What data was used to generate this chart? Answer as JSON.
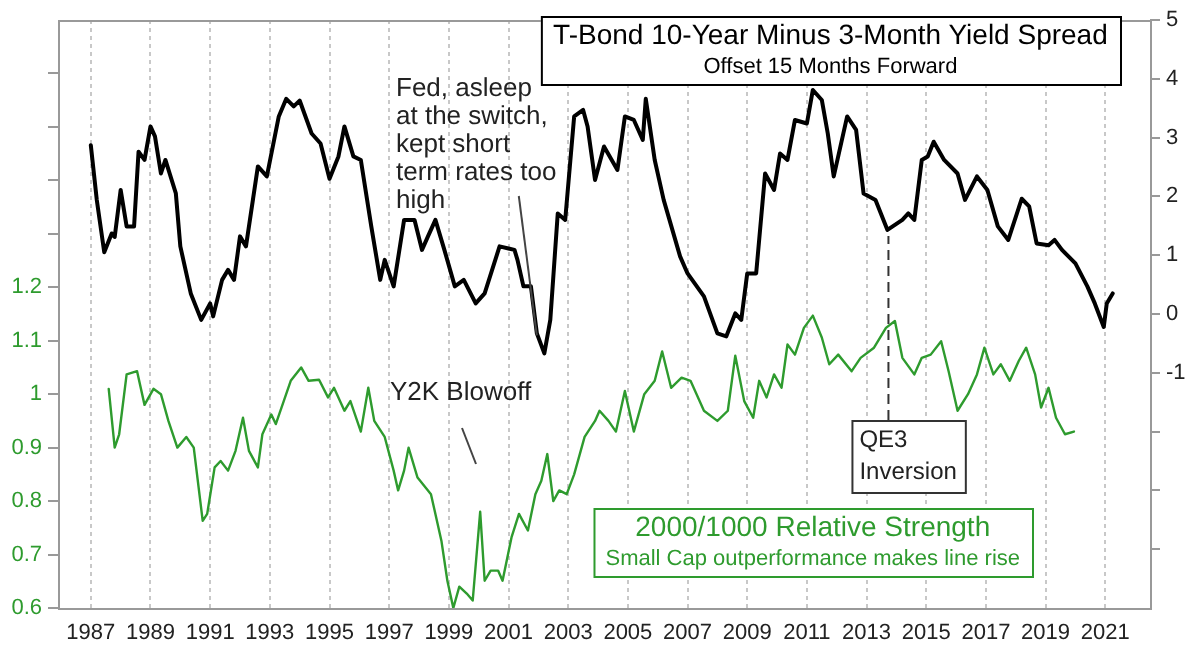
{
  "chart_data": {
    "type": "line",
    "xlim": [
      1985.9,
      2022.5
    ],
    "xticks": [
      1987,
      1989,
      1991,
      1993,
      1995,
      1997,
      1999,
      2001,
      2003,
      2005,
      2007,
      2009,
      2011,
      2013,
      2015,
      2017,
      2019,
      2021
    ],
    "ylim": [
      0.6,
      1.7
    ],
    "yticks": [
      0.6,
      0.7,
      0.8,
      0.9,
      1,
      1.1,
      1.2,
      {
        "value": 1.3,
        "label": null
      },
      {
        "value": 1.4,
        "label": null
      },
      {
        "value": 1.5,
        "label": null
      },
      {
        "value": 1.6,
        "label": null
      }
    ],
    "y2lim": [
      -5,
      5
    ],
    "y2ticks": [
      5,
      4,
      3,
      2,
      1,
      0,
      -1,
      {
        "value": -2,
        "label": null
      },
      {
        "value": -3,
        "label": null
      },
      {
        "value": -4,
        "label": null
      }
    ],
    "grid": "x",
    "marker": "none",
    "series": [
      {
        "name": "T-Bond 10-Year Minus 3-Month Yield Spread",
        "color": "#000000",
        "axis": "y2",
        "x": [
          1987.0,
          1987.2,
          1987.45,
          1987.7,
          1987.8,
          1988.0,
          1988.2,
          1988.45,
          1988.6,
          1988.8,
          1989.0,
          1989.15,
          1989.35,
          1989.5,
          1989.85,
          1990.0,
          1990.35,
          1990.7,
          1991.0,
          1991.1,
          1991.4,
          1991.6,
          1991.8,
          1992.0,
          1992.2,
          1992.6,
          1992.9,
          1993.3,
          1993.55,
          1993.8,
          1994.0,
          1994.4,
          1994.7,
          1995.0,
          1995.3,
          1995.5,
          1995.8,
          1996.05,
          1996.4,
          1996.7,
          1996.85,
          1997.15,
          1997.5,
          1997.85,
          1998.1,
          1998.3,
          1998.55,
          1998.85,
          1999.2,
          1999.5,
          1999.9,
          2000.2,
          2000.7,
          2001.2,
          2001.3,
          2001.5,
          2001.75,
          2001.95,
          2002.2,
          2002.4,
          2002.65,
          2002.9,
          2003.2,
          2003.5,
          2003.65,
          2003.9,
          2004.2,
          2004.65,
          2004.9,
          2005.2,
          2005.5,
          2005.6,
          2005.9,
          2006.2,
          2006.75,
          2007.0,
          2007.55,
          2008.0,
          2008.3,
          2008.6,
          2008.8,
          2009.0,
          2009.3,
          2009.6,
          2009.9,
          2010.1,
          2010.35,
          2010.6,
          2011.0,
          2011.2,
          2011.5,
          2011.7,
          2011.9,
          2012.35,
          2012.65,
          2012.9,
          2013.3,
          2013.7,
          2014.2,
          2014.4,
          2014.6,
          2014.85,
          2015.05,
          2015.25,
          2015.6,
          2016.05,
          2016.3,
          2016.7,
          2017.05,
          2017.4,
          2017.75,
          2018.2,
          2018.45,
          2018.7,
          2019.1,
          2019.3,
          2019.55,
          2020.0,
          2020.4,
          2020.65,
          2020.95,
          2021.05,
          2021.25
        ],
        "values": [
          2.87,
          1.94,
          1.05,
          1.37,
          1.31,
          2.11,
          1.49,
          1.49,
          2.76,
          2.62,
          3.19,
          3.02,
          2.39,
          2.62,
          2.05,
          1.15,
          0.35,
          -0.1,
          0.18,
          -0.04,
          0.58,
          0.75,
          0.58,
          1.32,
          1.15,
          2.51,
          2.34,
          3.36,
          3.66,
          3.53,
          3.63,
          3.07,
          2.9,
          2.3,
          2.68,
          3.19,
          2.68,
          2.62,
          1.49,
          0.58,
          0.92,
          0.47,
          1.6,
          1.6,
          1.09,
          1.32,
          1.6,
          1.09,
          0.47,
          0.58,
          0.18,
          0.35,
          1.15,
          1.09,
          0.92,
          0.47,
          0.47,
          -0.33,
          -0.67,
          -0.1,
          1.71,
          1.6,
          3.36,
          3.47,
          3.19,
          2.28,
          2.85,
          2.45,
          3.36,
          3.3,
          2.96,
          3.66,
          2.62,
          1.94,
          0.98,
          0.69,
          0.3,
          -0.33,
          -0.38,
          0.01,
          -0.1,
          0.69,
          0.69,
          2.39,
          2.11,
          2.73,
          2.62,
          3.3,
          3.24,
          3.81,
          3.64,
          3.07,
          2.34,
          3.36,
          3.13,
          2.05,
          1.94,
          1.43,
          1.6,
          1.71,
          1.6,
          2.62,
          2.68,
          2.93,
          2.62,
          2.39,
          1.94,
          2.34,
          2.11,
          1.49,
          1.26,
          1.96,
          1.83,
          1.2,
          1.17,
          1.26,
          1.09,
          0.86,
          0.47,
          0.18,
          -0.22,
          0.18,
          0.35
        ]
      },
      {
        "name": "2000/1000 Relative Strength",
        "color": "#2e9b2e",
        "x": [
          1987.6,
          1987.8,
          1987.95,
          1988.2,
          1988.55,
          1988.8,
          1989.1,
          1989.35,
          1989.6,
          1989.9,
          1990.2,
          1990.45,
          1990.75,
          1990.9,
          1991.15,
          1991.35,
          1991.6,
          1991.85,
          1992.1,
          1992.3,
          1992.6,
          1992.75,
          1993.05,
          1993.2,
          1993.7,
          1994.05,
          1994.3,
          1994.65,
          1994.95,
          1995.15,
          1995.5,
          1995.7,
          1996.05,
          1996.3,
          1996.5,
          1996.85,
          1997.15,
          1997.3,
          1997.5,
          1997.65,
          1997.95,
          1998.4,
          1998.75,
          1998.95,
          1999.15,
          1999.35,
          1999.6,
          1999.8,
          2000.05,
          2000.2,
          2000.4,
          2000.65,
          2000.8,
          2001.1,
          2001.35,
          2001.65,
          2001.9,
          2002.1,
          2002.3,
          2002.5,
          2002.7,
          2002.95,
          2003.2,
          2003.55,
          2003.9,
          2004.05,
          2004.35,
          2004.6,
          2004.9,
          2005.2,
          2005.55,
          2005.9,
          2006.15,
          2006.45,
          2006.8,
          2007.1,
          2007.55,
          2008.0,
          2008.35,
          2008.6,
          2008.9,
          2009.2,
          2009.4,
          2009.65,
          2009.9,
          2010.15,
          2010.35,
          2010.6,
          2010.9,
          2011.2,
          2011.5,
          2011.75,
          2012.05,
          2012.5,
          2012.8,
          2013.25,
          2013.65,
          2013.95,
          2014.2,
          2014.6,
          2014.85,
          2015.15,
          2015.5,
          2015.75,
          2016.05,
          2016.4,
          2016.7,
          2016.95,
          2017.25,
          2017.5,
          2017.8,
          2018.1,
          2018.35,
          2018.65,
          2018.85,
          2019.1,
          2019.35,
          2019.65,
          2019.95
        ],
        "values": [
          1.01,
          0.9,
          0.925,
          1.037,
          1.043,
          0.98,
          1.01,
          1.0,
          0.95,
          0.9,
          0.92,
          0.9,
          0.763,
          0.776,
          0.863,
          0.875,
          0.857,
          0.894,
          0.956,
          0.894,
          0.863,
          0.925,
          0.962,
          0.944,
          1.025,
          1.05,
          1.025,
          1.027,
          0.994,
          1.012,
          0.969,
          0.987,
          0.93,
          1.012,
          0.95,
          0.92,
          0.857,
          0.82,
          0.857,
          0.9,
          0.844,
          0.813,
          0.726,
          0.651,
          0.6,
          0.64,
          0.627,
          0.614,
          0.78,
          0.651,
          0.67,
          0.67,
          0.651,
          0.732,
          0.776,
          0.745,
          0.813,
          0.838,
          0.888,
          0.8,
          0.82,
          0.813,
          0.85,
          0.92,
          0.95,
          0.969,
          0.95,
          0.93,
          1.006,
          0.93,
          1.0,
          1.025,
          1.08,
          1.012,
          1.031,
          1.025,
          0.969,
          0.95,
          0.969,
          1.072,
          0.987,
          0.956,
          1.025,
          0.994,
          1.037,
          1.012,
          1.093,
          1.074,
          1.124,
          1.147,
          1.106,
          1.056,
          1.074,
          1.043,
          1.068,
          1.087,
          1.124,
          1.137,
          1.068,
          1.037,
          1.068,
          1.074,
          1.099,
          1.043,
          0.969,
          1.0,
          1.037,
          1.087,
          1.037,
          1.056,
          1.025,
          1.062,
          1.087,
          1.037,
          0.975,
          1.012,
          0.956,
          0.925,
          0.93
        ]
      }
    ],
    "ref_lines": [
      {
        "axis": "x",
        "value": 2013.7,
        "label": "QE3 Inversion",
        "line_style": "dashed"
      }
    ],
    "annotations": [
      "Offset 15 Months Forward",
      "Small Cap outperformance makes line rise",
      {
        "text": "Fed, asleep at the switch, kept short term rates too high",
        "x": 2001.95,
        "y": 1.11
      },
      "Y2K Blowoff"
    ]
  }
}
